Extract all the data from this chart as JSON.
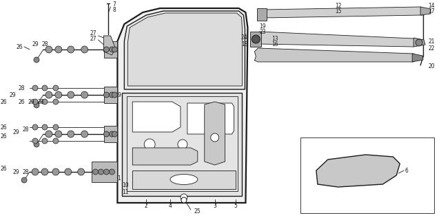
{
  "bg_color": "#ffffff",
  "line_color": "#1a1a1a",
  "lw_thick": 1.6,
  "lw_med": 1.0,
  "lw_thin": 0.6,
  "label_fs": 5.5,
  "fig_w": 6.4,
  "fig_h": 3.2,
  "dpi": 100
}
